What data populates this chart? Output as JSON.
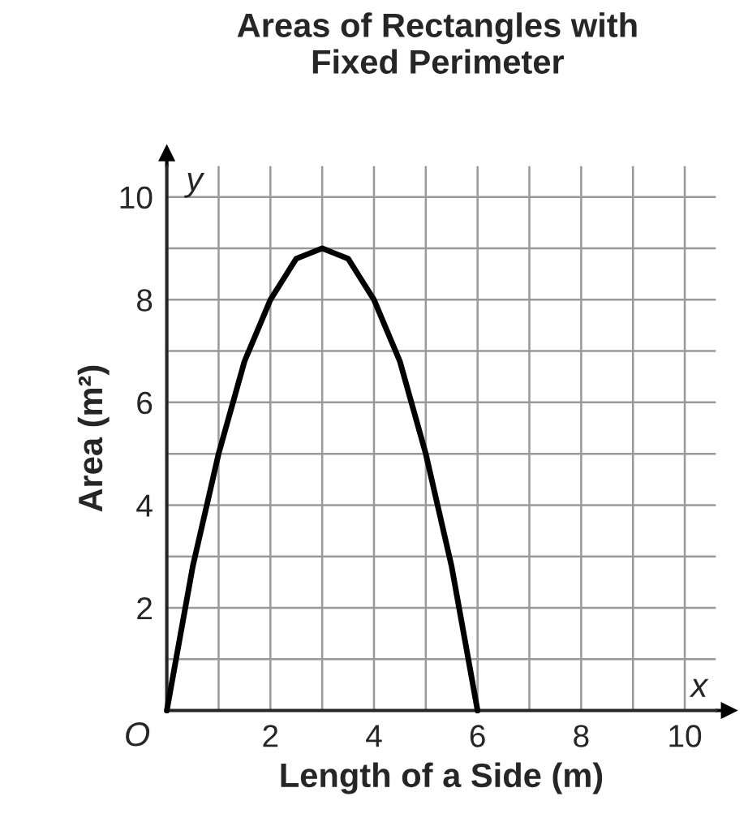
{
  "chart_data": {
    "type": "line",
    "title": "Areas of Rectangles with\nFixed Perimeter",
    "xlabel": "Length of a Side (m)",
    "ylabel": "Area (m²)",
    "annotations": [
      "y",
      "x",
      "O"
    ],
    "series": [
      {
        "color": "#000000",
        "x": [
          0,
          0.25,
          0.5,
          0.75,
          1,
          1.25,
          1.5,
          1.75,
          2,
          2.25,
          2.5,
          2.75,
          3,
          3.25,
          3.5,
          3.75,
          4,
          4.25,
          4.5,
          4.75,
          5,
          5.25,
          5.5,
          5.75,
          6
        ],
        "values": [
          0,
          1.4,
          2.8,
          3.9,
          5,
          5.9,
          6.8,
          7.4,
          8,
          8.4,
          8.8,
          8.9,
          9,
          8.9,
          8.8,
          8.4,
          8,
          7.4,
          6.8,
          5.9,
          5,
          3.9,
          2.8,
          1.4,
          0
        ]
      }
    ],
    "xlim": [
      0,
      10.6
    ],
    "ylim": [
      0,
      10.6
    ],
    "xticks": [
      {
        "value": 1,
        "label": null
      },
      2,
      {
        "value": 3,
        "label": null
      },
      4,
      {
        "value": 5,
        "label": null
      },
      6,
      {
        "value": 7,
        "label": null
      },
      8,
      {
        "value": 9,
        "label": null
      },
      10
    ],
    "yticks": [
      {
        "value": 1,
        "label": null
      },
      2,
      {
        "value": 3,
        "label": null
      },
      4,
      {
        "value": 5,
        "label": null
      },
      6,
      {
        "value": 7,
        "label": null
      },
      8,
      {
        "value": 9,
        "label": null
      },
      10
    ],
    "grid": true,
    "marker": "none",
    "line_style": "solid",
    "legend": false
  }
}
